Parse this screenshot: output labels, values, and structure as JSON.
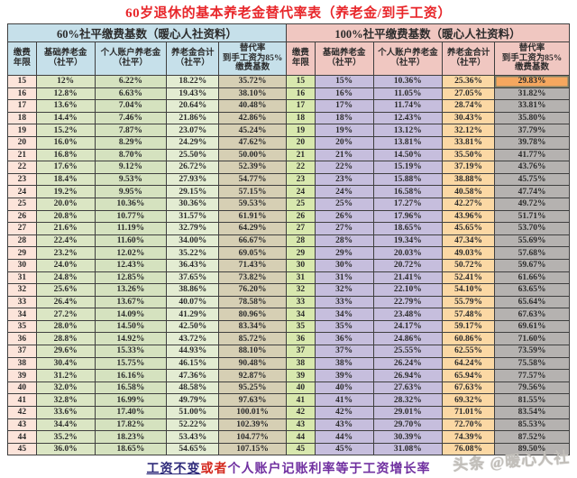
{
  "title": "60岁退休的基本养老金替代率表（养老金/到手工资）",
  "footnote": {
    "part1": "工资不变",
    "part2": "或者",
    "part3": "个人账户记账利率等于工资增长率"
  },
  "watermark": "头条 @暖心人社",
  "colors": {
    "title_red": "#e8262a",
    "left_header_bg": "#c6e0ea",
    "right_header_bg": "#f0c7c1",
    "left_year_bg": "#fce4da",
    "left_base_bg": "#dbe6c4",
    "left_personal_bg": "#d5e2bf",
    "left_total_bg": "#e3ecd2",
    "left_rate_bg": "#d6cfb4",
    "right_year_bg": "#d8e8ae",
    "right_base_bg": "#c6bedd",
    "right_personal_bg": "#c6bedd",
    "right_total_bg": "#fbd8a4",
    "right_rate_bg": "#b5b2b0",
    "highlight_cell_bg": "#f5a75f",
    "footnote_blue": "#2e2a7a",
    "footnote_red": "#d42a20",
    "footnote_purple": "#7030a0"
  },
  "chart_data": {
    "type": "table",
    "title": "60岁退休的基本养老金替代率表（养老金/到手工资）",
    "tables": [
      {
        "name": "60%社平缴费基数（暖心人社资料）",
        "columns": [
          "缴费\n年限",
          "基础养老金\n（社平）",
          "个人账户养老金\n（社平）",
          "养老金合计\n（社平）",
          "替代率\n到手工资为85%\n缴费基数"
        ],
        "rows": [
          [
            "15",
            "12%",
            "6.22%",
            "18.22%",
            "35.72%"
          ],
          [
            "16",
            "12.8%",
            "6.63%",
            "19.43%",
            "38.10%"
          ],
          [
            "17",
            "13.6%",
            "7.04%",
            "20.64%",
            "40.48%"
          ],
          [
            "18",
            "14.4%",
            "7.46%",
            "21.86%",
            "42.86%"
          ],
          [
            "19",
            "15.2%",
            "7.87%",
            "23.07%",
            "45.24%"
          ],
          [
            "20",
            "16.0%",
            "8.29%",
            "24.29%",
            "47.62%"
          ],
          [
            "21",
            "16.8%",
            "8.70%",
            "25.50%",
            "50.00%"
          ],
          [
            "22",
            "17.6%",
            "9.12%",
            "26.72%",
            "52.39%"
          ],
          [
            "23",
            "18.4%",
            "9.53%",
            "27.93%",
            "54.77%"
          ],
          [
            "24",
            "19.2%",
            "9.95%",
            "29.15%",
            "57.15%"
          ],
          [
            "25",
            "20.0%",
            "10.36%",
            "30.36%",
            "59.53%"
          ],
          [
            "26",
            "20.8%",
            "10.77%",
            "31.57%",
            "61.91%"
          ],
          [
            "27",
            "21.6%",
            "11.19%",
            "32.79%",
            "64.29%"
          ],
          [
            "28",
            "22.4%",
            "11.60%",
            "34.00%",
            "66.67%"
          ],
          [
            "29",
            "23.2%",
            "12.02%",
            "35.22%",
            "69.05%"
          ],
          [
            "30",
            "24.0%",
            "12.43%",
            "36.43%",
            "71.43%"
          ],
          [
            "31",
            "24.8%",
            "12.85%",
            "37.65%",
            "73.82%"
          ],
          [
            "32",
            "25.6%",
            "13.26%",
            "38.86%",
            "76.20%"
          ],
          [
            "33",
            "26.4%",
            "13.67%",
            "40.07%",
            "78.58%"
          ],
          [
            "34",
            "27.2%",
            "14.09%",
            "41.29%",
            "80.96%"
          ],
          [
            "35",
            "28.0%",
            "14.50%",
            "42.50%",
            "83.34%"
          ],
          [
            "36",
            "28.8%",
            "14.92%",
            "43.72%",
            "85.72%"
          ],
          [
            "37",
            "29.6%",
            "15.33%",
            "44.93%",
            "88.10%"
          ],
          [
            "38",
            "30.4%",
            "15.75%",
            "46.15%",
            "90.48%"
          ],
          [
            "39",
            "31.2%",
            "16.16%",
            "47.36%",
            "92.87%"
          ],
          [
            "40",
            "32.0%",
            "16.58%",
            "48.58%",
            "95.25%"
          ],
          [
            "41",
            "32.8%",
            "16.99%",
            "49.79%",
            "97.63%"
          ],
          [
            "42",
            "33.6%",
            "17.40%",
            "51.00%",
            "100.01%"
          ],
          [
            "43",
            "34.4%",
            "17.82%",
            "52.22%",
            "102.39%"
          ],
          [
            "44",
            "35.2%",
            "18.23%",
            "53.43%",
            "104.77%"
          ],
          [
            "45",
            "36.0%",
            "18.65%",
            "54.65%",
            "107.15%"
          ]
        ]
      },
      {
        "name": "100%社平缴费基数（暖心人社资料）",
        "columns": [
          "缴费\n年限",
          "基础养老金\n（社平）",
          "个人账户养老金\n（社平）",
          "养老金合计\n（社平）",
          "替代率\n到手工资为85%\n缴费基数"
        ],
        "highlight_cell": {
          "row": 0,
          "col": 4
        },
        "rows": [
          [
            "15",
            "15%",
            "10.36%",
            "25.36%",
            "29.83%"
          ],
          [
            "16",
            "16%",
            "11.05%",
            "27.05%",
            "31.82%"
          ],
          [
            "17",
            "17%",
            "11.74%",
            "28.74%",
            "33.81%"
          ],
          [
            "18",
            "18%",
            "12.43%",
            "30.43%",
            "35.80%"
          ],
          [
            "19",
            "19%",
            "13.12%",
            "32.12%",
            "37.79%"
          ],
          [
            "20",
            "20%",
            "13.81%",
            "33.81%",
            "39.78%"
          ],
          [
            "21",
            "21%",
            "14.50%",
            "35.50%",
            "41.77%"
          ],
          [
            "22",
            "22%",
            "15.19%",
            "37.19%",
            "43.76%"
          ],
          [
            "23",
            "23%",
            "15.88%",
            "38.88%",
            "45.75%"
          ],
          [
            "24",
            "24%",
            "16.58%",
            "40.58%",
            "47.74%"
          ],
          [
            "25",
            "25%",
            "17.27%",
            "42.27%",
            "49.72%"
          ],
          [
            "26",
            "26%",
            "17.96%",
            "43.96%",
            "51.71%"
          ],
          [
            "27",
            "27%",
            "18.65%",
            "45.65%",
            "53.70%"
          ],
          [
            "28",
            "28%",
            "19.34%",
            "47.34%",
            "55.69%"
          ],
          [
            "29",
            "29%",
            "20.03%",
            "49.03%",
            "57.68%"
          ],
          [
            "30",
            "30%",
            "20.72%",
            "50.72%",
            "59.67%"
          ],
          [
            "31",
            "31%",
            "21.41%",
            "52.41%",
            "61.66%"
          ],
          [
            "32",
            "32%",
            "22.10%",
            "54.10%",
            "63.65%"
          ],
          [
            "33",
            "33%",
            "22.79%",
            "55.79%",
            "65.64%"
          ],
          [
            "34",
            "34%",
            "23.48%",
            "57.48%",
            "67.63%"
          ],
          [
            "35",
            "35%",
            "24.17%",
            "59.17%",
            "69.61%"
          ],
          [
            "36",
            "36%",
            "24.86%",
            "60.86%",
            "71.60%"
          ],
          [
            "37",
            "37%",
            "25.55%",
            "62.55%",
            "73.59%"
          ],
          [
            "38",
            "38%",
            "26.24%",
            "64.24%",
            "75.58%"
          ],
          [
            "39",
            "39%",
            "26.94%",
            "65.94%",
            "77.57%"
          ],
          [
            "40",
            "40%",
            "27.63%",
            "67.63%",
            "79.56%"
          ],
          [
            "41",
            "41%",
            "28.32%",
            "69.32%",
            "81.55%"
          ],
          [
            "42",
            "42%",
            "29.01%",
            "71.01%",
            "83.54%"
          ],
          [
            "43",
            "43%",
            "29.70%",
            "72.70%",
            "85.53%"
          ],
          [
            "44",
            "44%",
            "30.39%",
            "74.39%",
            "87.52%"
          ],
          [
            "45",
            "45%",
            "31.08%",
            "76.08%",
            "89.50%"
          ]
        ]
      }
    ]
  }
}
